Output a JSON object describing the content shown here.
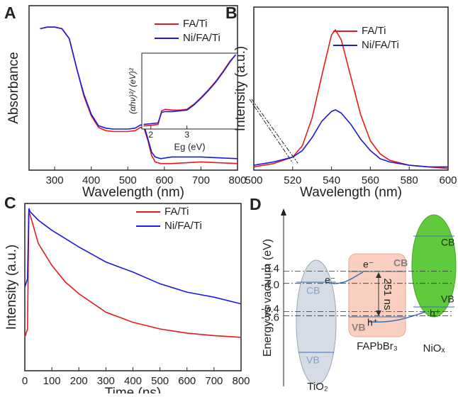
{
  "chart_data": [
    {
      "type": "line",
      "panel_label": "A",
      "x_label": "Wavelength (nm)",
      "y_label": "Absorbance",
      "xlim": [
        230,
        800
      ],
      "ylim": [
        0,
        1
      ],
      "xticks": [
        300,
        400,
        500,
        600,
        700,
        800
      ],
      "legend": "upper right",
      "x": [
        260,
        280,
        300,
        320,
        340,
        360,
        380,
        400,
        420,
        440,
        460,
        480,
        500,
        520,
        535,
        545,
        555,
        565,
        575,
        590,
        620,
        700,
        800
      ],
      "series": [
        {
          "name": "FA/Ti",
          "color": "#e8191c",
          "values": [
            0.86,
            0.87,
            0.87,
            0.86,
            0.8,
            0.62,
            0.45,
            0.33,
            0.26,
            0.24,
            0.235,
            0.235,
            0.235,
            0.24,
            0.26,
            0.25,
            0.18,
            0.09,
            0.05,
            0.04,
            0.04,
            0.05,
            0.04
          ]
        },
        {
          "name": "Ni/FA/Ti",
          "color": "#1a1adf",
          "values": [
            0.86,
            0.87,
            0.87,
            0.86,
            0.8,
            0.62,
            0.46,
            0.34,
            0.27,
            0.255,
            0.25,
            0.25,
            0.25,
            0.255,
            0.275,
            0.265,
            0.19,
            0.11,
            0.08,
            0.07,
            0.08,
            0.08,
            0.07
          ]
        }
      ],
      "inset": {
        "type": "line",
        "x_label": "Eg (eV)",
        "y_label": "(αhν)²/ (eV)²",
        "xlim": [
          1.75,
          4.4
        ],
        "ylim": [
          0,
          1
        ],
        "xticks": [
          2,
          3
        ],
        "x": [
          1.8,
          2.0,
          2.2,
          2.3,
          2.4,
          2.6,
          2.8,
          3.0,
          3.2,
          3.4,
          3.6,
          3.8,
          4.0,
          4.2,
          4.35
        ],
        "series": [
          {
            "color": "#e8191c",
            "values": [
              0.04,
              0.05,
              0.06,
              0.24,
              0.26,
              0.25,
              0.25,
              0.26,
              0.33,
              0.42,
              0.52,
              0.63,
              0.76,
              0.9,
              0.98
            ]
          },
          {
            "color": "#1a1adf",
            "values": [
              0.06,
              0.07,
              0.08,
              0.22,
              0.23,
              0.23,
              0.24,
              0.25,
              0.32,
              0.41,
              0.51,
              0.62,
              0.75,
              0.89,
              0.98
            ]
          }
        ]
      }
    },
    {
      "type": "line",
      "panel_label": "B",
      "x_label": "Wavelength (nm)",
      "y_label": "Intensity (a.u.)",
      "xlim": [
        500,
        600
      ],
      "ylim": [
        0,
        1
      ],
      "xticks": [
        500,
        520,
        540,
        560,
        580,
        600
      ],
      "legend": "upper right",
      "x": [
        500,
        510,
        520,
        525,
        530,
        535,
        540,
        542,
        545,
        550,
        555,
        560,
        565,
        570,
        580,
        590,
        600
      ],
      "series": [
        {
          "name": "FA/Ti",
          "color": "#e8191c",
          "values": [
            0.02,
            0.04,
            0.08,
            0.15,
            0.32,
            0.58,
            0.83,
            0.86,
            0.8,
            0.57,
            0.34,
            0.18,
            0.1,
            0.06,
            0.03,
            0.02,
            0.01
          ]
        },
        {
          "name": "Ni/FA/Ti",
          "color": "#1a1adf",
          "values": [
            0.03,
            0.05,
            0.08,
            0.12,
            0.2,
            0.3,
            0.36,
            0.37,
            0.35,
            0.28,
            0.19,
            0.12,
            0.07,
            0.05,
            0.03,
            0.02,
            0.02
          ]
        }
      ]
    },
    {
      "type": "line",
      "panel_label": "C",
      "x_label": "Time (ns)",
      "y_label": "Intensity (a.u.)",
      "xlim": [
        0,
        800
      ],
      "ylim": [
        0,
        1
      ],
      "xticks": [
        0,
        100,
        200,
        300,
        400,
        500,
        600,
        700,
        800
      ],
      "legend": "upper right",
      "x": [
        0,
        10,
        15,
        20,
        50,
        100,
        150,
        200,
        300,
        400,
        500,
        600,
        700,
        800
      ],
      "series": [
        {
          "name": "FA/Ti",
          "color": "#e8191c",
          "values": [
            0.2,
            0.25,
            0.95,
            0.93,
            0.76,
            0.63,
            0.53,
            0.46,
            0.35,
            0.29,
            0.25,
            0.225,
            0.21,
            0.2
          ]
        },
        {
          "name": "Ni/FA/Ti",
          "color": "#1a1adf",
          "values": [
            0.5,
            0.55,
            0.97,
            0.95,
            0.9,
            0.84,
            0.79,
            0.74,
            0.65,
            0.59,
            0.52,
            0.47,
            0.44,
            0.4
          ]
        }
      ]
    },
    {
      "type": "energy_diagram",
      "panel_label": "D",
      "y_label": "Energy vs vacuum (eV)",
      "ylim": [
        -9.1,
        -0.5
      ],
      "yticks": [
        -3.4,
        {
          "value": -4,
          "label": "-4.0"
        },
        -5.4,
        -5.6
      ],
      "tio2": {
        "name": "TiO₂",
        "cb": "CB",
        "vb": "VB",
        "electron": "e⁻"
      },
      "perovskite": {
        "name": "FAPbBr₃",
        "cb": "CB",
        "vb": "VB",
        "electron": "e⁻",
        "hole": "h⁺",
        "lifetime": "251 ns"
      },
      "nio": {
        "name": "NiOₓ",
        "cb": "CB",
        "vb": "VB",
        "hole": "h⁺"
      }
    }
  ]
}
